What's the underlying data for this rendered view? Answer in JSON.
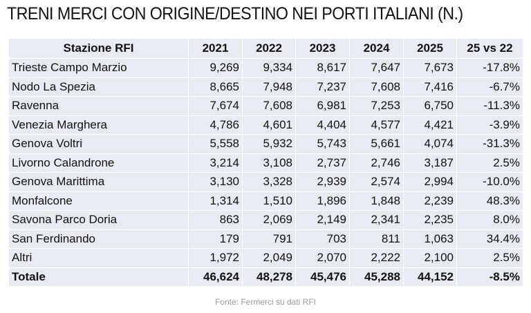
{
  "title": "TRENI MERCI CON ORIGINE/DESTINO NEI PORTI ITALIANI (N.)",
  "source": "Fonte: Fermerci su dati RFI",
  "chart_data": {
    "type": "table",
    "title": "TRENI MERCI CON ORIGINE/DESTINO NEI PORTI ITALIANI (N.)",
    "columns": [
      "Stazione RFI",
      "2021",
      "2022",
      "2023",
      "2024",
      "2025",
      "25 vs 22"
    ],
    "rows": [
      [
        "Trieste Campo Marzio",
        "9,269",
        "9,334",
        "8,617",
        "7,647",
        "7,673",
        "-17.8%"
      ],
      [
        "Nodo La Spezia",
        "8,665",
        "7,948",
        "7,237",
        "7,608",
        "7,416",
        "-6.7%"
      ],
      [
        "Ravenna",
        "7,674",
        "7,608",
        "6,981",
        "7,253",
        "6,750",
        "-11.3%"
      ],
      [
        "Venezia Marghera",
        "4,786",
        "4,601",
        "4,404",
        "4,577",
        "4,421",
        "-3.9%"
      ],
      [
        "Genova Voltri",
        "5,558",
        "5,932",
        "5,743",
        "5,661",
        "4,074",
        "-31.3%"
      ],
      [
        "Livorno Calandrone",
        "3,214",
        "3,108",
        "2,737",
        "2,746",
        "3,187",
        "2.5%"
      ],
      [
        "Genova Marittima",
        "3,130",
        "3,328",
        "2,939",
        "2,574",
        "2,994",
        "-10.0%"
      ],
      [
        "Monfalcone",
        "1,314",
        "1,510",
        "1,896",
        "1,848",
        "2,239",
        "48.3%"
      ],
      [
        "Savona Parco Doria",
        "863",
        "2,069",
        "2,149",
        "2,341",
        "2,235",
        "8.0%"
      ],
      [
        "San Ferdinando",
        "179",
        "791",
        "703",
        "811",
        "1,063",
        "34.4%"
      ],
      [
        "Altri",
        "1,972",
        "2,049",
        "2,070",
        "2,222",
        "2,100",
        "2.5%"
      ]
    ],
    "total": [
      "Totale",
      "46,624",
      "48,278",
      "45,476",
      "45,288",
      "44,152",
      "-8.5%"
    ]
  },
  "colors": {
    "cell_background": "#e9ebf2",
    "grid": "#ffffff",
    "source_text": "#999999"
  }
}
